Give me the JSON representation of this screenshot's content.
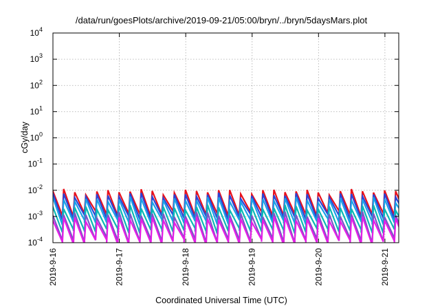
{
  "chart_data": {
    "type": "line",
    "title": "/data/run/goesPlots/archive/2019-09-21/05:00/bryn/../bryn/5daysMars.plot",
    "xlabel": "Coordinated Universal Time (UTC)",
    "ylabel": "cGy/day",
    "x_axis": {
      "type": "time",
      "range": [
        "2019-09-16T00:00",
        "2019-09-21T05:00"
      ],
      "ticks": [
        "2019-9-16",
        "2019-9-17",
        "2019-9-18",
        "2019-9-19",
        "2019-9-20",
        "2019-9-21"
      ]
    },
    "y_axis": {
      "scale": "log",
      "range": [
        0.0001,
        10000
      ],
      "ticks": [
        {
          "base": "10",
          "exp": "-4"
        },
        {
          "base": "10",
          "exp": "-3"
        },
        {
          "base": "10",
          "exp": "-2"
        },
        {
          "base": "10",
          "exp": "-1"
        },
        {
          "base": "10",
          "exp": "0"
        },
        {
          "base": "10",
          "exp": "1"
        },
        {
          "base": "10",
          "exp": "2"
        },
        {
          "base": "10",
          "exp": "3"
        },
        {
          "base": "10",
          "exp": "4"
        }
      ]
    },
    "grid": true,
    "legend": "none",
    "series": [
      {
        "color": "#e8111c",
        "peak": 0.009,
        "trough": 0.0012
      },
      {
        "color": "#2a44d6",
        "peak": 0.0065,
        "trough": 0.0009
      },
      {
        "color": "#1aa0e8",
        "peak": 0.0045,
        "trough": 0.0006
      },
      {
        "color": "#0ab8b4",
        "peak": 0.0022,
        "trough": 0.00028
      },
      {
        "color": "#7a55c8",
        "peak": 0.0012,
        "trough": 0.00012
      },
      {
        "color": "#e61ee6",
        "peak": 0.0008,
        "trough": 0.0001
      }
    ],
    "cycle_hours": 4
  }
}
